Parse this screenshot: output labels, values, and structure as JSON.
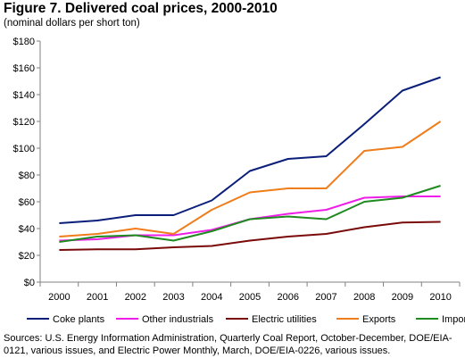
{
  "title": "Figure 7. Delivered coal prices, 2000-2010",
  "subtitle": "(nominal dollars per short ton)",
  "source": "Sources: U.S. Energy Information Administration, Quarterly Coal Report, October-December, DOE/EIA-0121, various issues, and Electric Power Monthly, March, DOE/EIA-0226, various issues.",
  "chart_data": {
    "type": "line",
    "title": "Figure 7. Delivered coal prices, 2000-2010",
    "subtitle": "(nominal dollars per short ton)",
    "x": [
      "2000",
      "2001",
      "2002",
      "2003",
      "2004",
      "2005",
      "2006",
      "2007",
      "2008",
      "2009",
      "2010"
    ],
    "ylim": [
      0,
      180
    ],
    "yticks": [
      "$0",
      "$20",
      "$40",
      "$60",
      "$80",
      "$100",
      "$120",
      "$140",
      "$160",
      "$180"
    ],
    "ytick_values": [
      0,
      20,
      40,
      60,
      80,
      100,
      120,
      140,
      160,
      180
    ],
    "grid": "none",
    "legend_position": "bottom",
    "series": [
      {
        "name": "Coke plants",
        "color": "#0b1e7a",
        "values": [
          44,
          46,
          50,
          50,
          61,
          83,
          92,
          94,
          118,
          143,
          153
        ]
      },
      {
        "name": "Other industrials",
        "color": "#ee1ee8",
        "values": [
          31,
          32,
          35,
          35,
          39,
          47,
          51,
          54,
          63,
          64,
          64
        ]
      },
      {
        "name": "Electric utilities",
        "color": "#7a0a0a",
        "values": [
          24,
          24.5,
          24.5,
          26,
          27,
          31,
          34,
          36,
          41,
          44.5,
          45
        ]
      },
      {
        "name": "Exports",
        "color": "#f07d1c",
        "values": [
          34,
          36,
          40,
          36,
          54,
          67,
          70,
          70,
          98,
          101,
          120
        ]
      },
      {
        "name": "Imports",
        "color": "#1f8a1f",
        "values": [
          30,
          34,
          35,
          31,
          38,
          47,
          49,
          47,
          60,
          63,
          72
        ]
      }
    ]
  }
}
